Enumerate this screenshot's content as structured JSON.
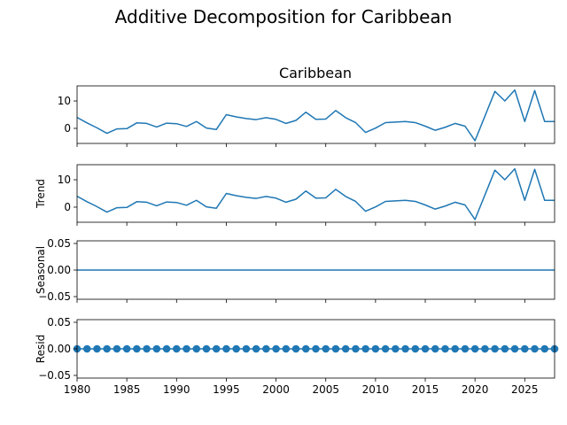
{
  "figure": {
    "title": "Additive Decomposition for Caribbean",
    "line_color": "#1f77b4"
  },
  "chart_data": [
    {
      "type": "line",
      "panel": "observed",
      "title": "Caribbean",
      "ylabel": "",
      "x": [
        1980,
        1981,
        1982,
        1983,
        1984,
        1985,
        1986,
        1987,
        1988,
        1989,
        1990,
        1991,
        1992,
        1993,
        1994,
        1995,
        1996,
        1997,
        1998,
        1999,
        2000,
        2001,
        2002,
        2003,
        2004,
        2005,
        2006,
        2007,
        2008,
        2009,
        2010,
        2011,
        2012,
        2013,
        2014,
        2015,
        2016,
        2017,
        2018,
        2019,
        2020,
        2021,
        2022,
        2023,
        2024,
        2025,
        2026,
        2027,
        2028
      ],
      "values": [
        4,
        2,
        0.2,
        -1.8,
        -0.2,
        -0.1,
        2,
        1.8,
        0.5,
        1.9,
        1.7,
        0.7,
        2.5,
        0.1,
        -0.4,
        5,
        4.2,
        3.6,
        3.2,
        3.9,
        3.3,
        1.8,
        2.9,
        5.9,
        3.3,
        3.4,
        6.5,
        3.9,
        2.1,
        -1.5,
        0.1,
        2.1,
        2.3,
        2.5,
        2.1,
        0.8,
        -0.7,
        0.4,
        1.8,
        0.8,
        -4.5,
        4.5,
        13.5,
        10,
        14,
        2.5,
        13.8,
        2.5,
        2.5
      ],
      "xlim": [
        1980,
        2028
      ],
      "ylim": [
        -5.5,
        15.5
      ],
      "yticks": [
        "0",
        "10"
      ],
      "xticks": []
    },
    {
      "type": "line",
      "panel": "trend",
      "title": "",
      "ylabel": "Trend",
      "x": [
        1980,
        1981,
        1982,
        1983,
        1984,
        1985,
        1986,
        1987,
        1988,
        1989,
        1990,
        1991,
        1992,
        1993,
        1994,
        1995,
        1996,
        1997,
        1998,
        1999,
        2000,
        2001,
        2002,
        2003,
        2004,
        2005,
        2006,
        2007,
        2008,
        2009,
        2010,
        2011,
        2012,
        2013,
        2014,
        2015,
        2016,
        2017,
        2018,
        2019,
        2020,
        2021,
        2022,
        2023,
        2024,
        2025,
        2026,
        2027,
        2028
      ],
      "values": [
        4,
        2,
        0.2,
        -1.8,
        -0.2,
        -0.1,
        2,
        1.8,
        0.5,
        1.9,
        1.7,
        0.7,
        2.5,
        0.1,
        -0.4,
        5,
        4.2,
        3.6,
        3.2,
        3.9,
        3.3,
        1.8,
        2.9,
        5.9,
        3.3,
        3.4,
        6.5,
        3.9,
        2.1,
        -1.5,
        0.1,
        2.1,
        2.3,
        2.5,
        2.1,
        0.8,
        -0.7,
        0.4,
        1.8,
        0.8,
        -4.5,
        4.5,
        13.5,
        10,
        14,
        2.5,
        13.8,
        2.5,
        2.5
      ],
      "xlim": [
        1980,
        2028
      ],
      "ylim": [
        -5.5,
        15.5
      ],
      "yticks": [
        "0",
        "10"
      ],
      "xticks": []
    },
    {
      "type": "line",
      "panel": "seasonal",
      "title": "",
      "ylabel": "Seasonal",
      "x": [
        1980,
        2028
      ],
      "values": [
        0,
        0
      ],
      "xlim": [
        1980,
        2028
      ],
      "ylim": [
        -0.055,
        0.055
      ],
      "yticks": [
        "−0.05",
        "0.00",
        "0.05"
      ],
      "xticks": []
    },
    {
      "type": "scatter",
      "panel": "resid",
      "title": "",
      "ylabel": "Resid",
      "x": [
        1980,
        1981,
        1982,
        1983,
        1984,
        1985,
        1986,
        1987,
        1988,
        1989,
        1990,
        1991,
        1992,
        1993,
        1994,
        1995,
        1996,
        1997,
        1998,
        1999,
        2000,
        2001,
        2002,
        2003,
        2004,
        2005,
        2006,
        2007,
        2008,
        2009,
        2010,
        2011,
        2012,
        2013,
        2014,
        2015,
        2016,
        2017,
        2018,
        2019,
        2020,
        2021,
        2022,
        2023,
        2024,
        2025,
        2026,
        2027,
        2028
      ],
      "values": [
        0,
        0,
        0,
        0,
        0,
        0,
        0,
        0,
        0,
        0,
        0,
        0,
        0,
        0,
        0,
        0,
        0,
        0,
        0,
        0,
        0,
        0,
        0,
        0,
        0,
        0,
        0,
        0,
        0,
        0,
        0,
        0,
        0,
        0,
        0,
        0,
        0,
        0,
        0,
        0,
        0,
        0,
        0,
        0,
        0,
        0,
        0,
        0,
        0
      ],
      "baseline": 0,
      "xlim": [
        1980,
        2028
      ],
      "ylim": [
        -0.055,
        0.055
      ],
      "yticks": [
        "−0.05",
        "0.00",
        "0.05"
      ],
      "xticks": [
        "1980",
        "1985",
        "1990",
        "1995",
        "2000",
        "2005",
        "2010",
        "2015",
        "2020",
        "2025"
      ]
    }
  ]
}
